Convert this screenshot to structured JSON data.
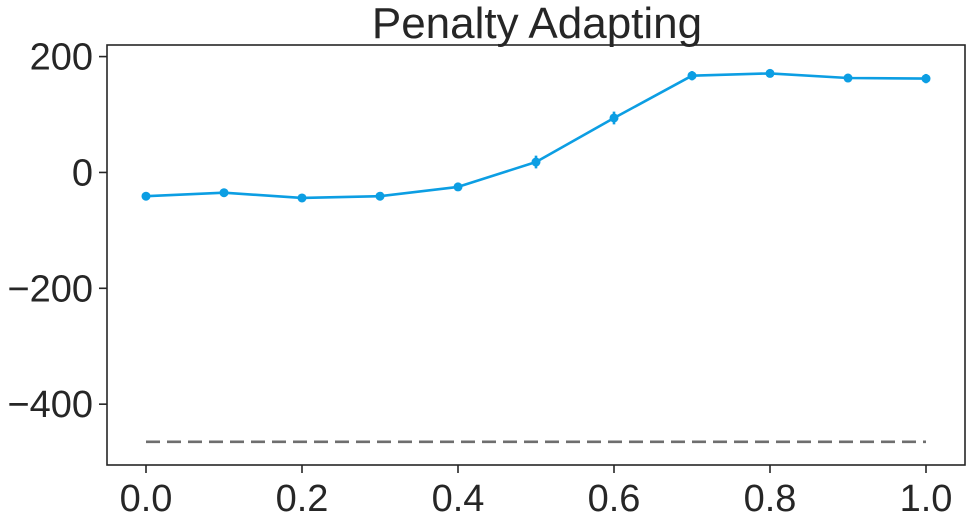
{
  "chart_data": {
    "type": "line",
    "title": "Penalty Adapting",
    "xlabel": "",
    "ylabel": "",
    "xlim": [
      -0.05,
      1.05
    ],
    "ylim": [
      -505,
      220
    ],
    "x_ticks": [
      0.0,
      0.2,
      0.4,
      0.6,
      0.8,
      1.0
    ],
    "x_tick_labels": [
      "0.0",
      "0.2",
      "0.4",
      "0.6",
      "0.8",
      "1.0"
    ],
    "y_ticks": [
      200,
      0,
      -200,
      -400
    ],
    "y_tick_labels": [
      "200",
      "0",
      "−200",
      "−400"
    ],
    "grid": false,
    "legend": "none",
    "series": [
      {
        "x": [
          0.0,
          0.1,
          0.2,
          0.3,
          0.4,
          0.5,
          0.6,
          0.7,
          0.8,
          0.9,
          1.0
        ],
        "values": [
          -41,
          -35,
          -44,
          -41,
          -25,
          18,
          94,
          167,
          171,
          163,
          162
        ],
        "error": [
          6,
          5,
          5,
          6,
          7,
          11,
          11,
          8,
          7,
          7,
          8
        ],
        "color": "#0c9ee3",
        "style": "solid",
        "marker": "circle"
      },
      {
        "x": [
          0.0,
          1.0
        ],
        "values": [
          -465,
          -465
        ],
        "color": "#6e6e6e",
        "style": "dashed",
        "marker": "none"
      }
    ]
  }
}
